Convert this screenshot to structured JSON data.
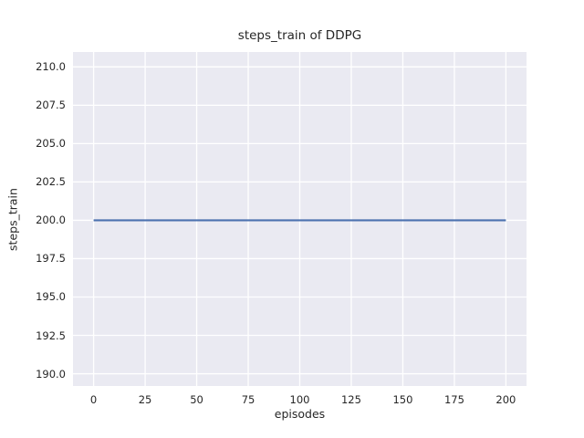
{
  "chart_data": {
    "type": "line",
    "title": "steps_train of DDPG",
    "xlabel": "episodes",
    "ylabel": "steps_train",
    "series": [
      {
        "name": "steps_train",
        "color": "#4C72B0",
        "x": [
          0,
          200
        ],
        "y": [
          200,
          200
        ]
      }
    ],
    "xlim": [
      -10,
      210
    ],
    "ylim": [
      189.2,
      210.97
    ],
    "xticks": [
      0,
      25,
      50,
      75,
      100,
      125,
      150,
      175,
      200
    ],
    "xtick_labels": [
      "0",
      "25",
      "50",
      "75",
      "100",
      "125",
      "150",
      "175",
      "200"
    ],
    "yticks": [
      190.0,
      192.5,
      195.0,
      197.5,
      200.0,
      202.5,
      205.0,
      207.5,
      210.0
    ],
    "ytick_labels": [
      "190.0",
      "192.5",
      "195.0",
      "197.5",
      "200.0",
      "202.5",
      "205.0",
      "207.5",
      "210.0"
    ],
    "grid": true,
    "legend": false,
    "plot_bg_color": "#EAEAF2",
    "grid_color": "#FFFFFF",
    "text_color": "#262626",
    "figure_bg_color": "#FFFFFF"
  }
}
